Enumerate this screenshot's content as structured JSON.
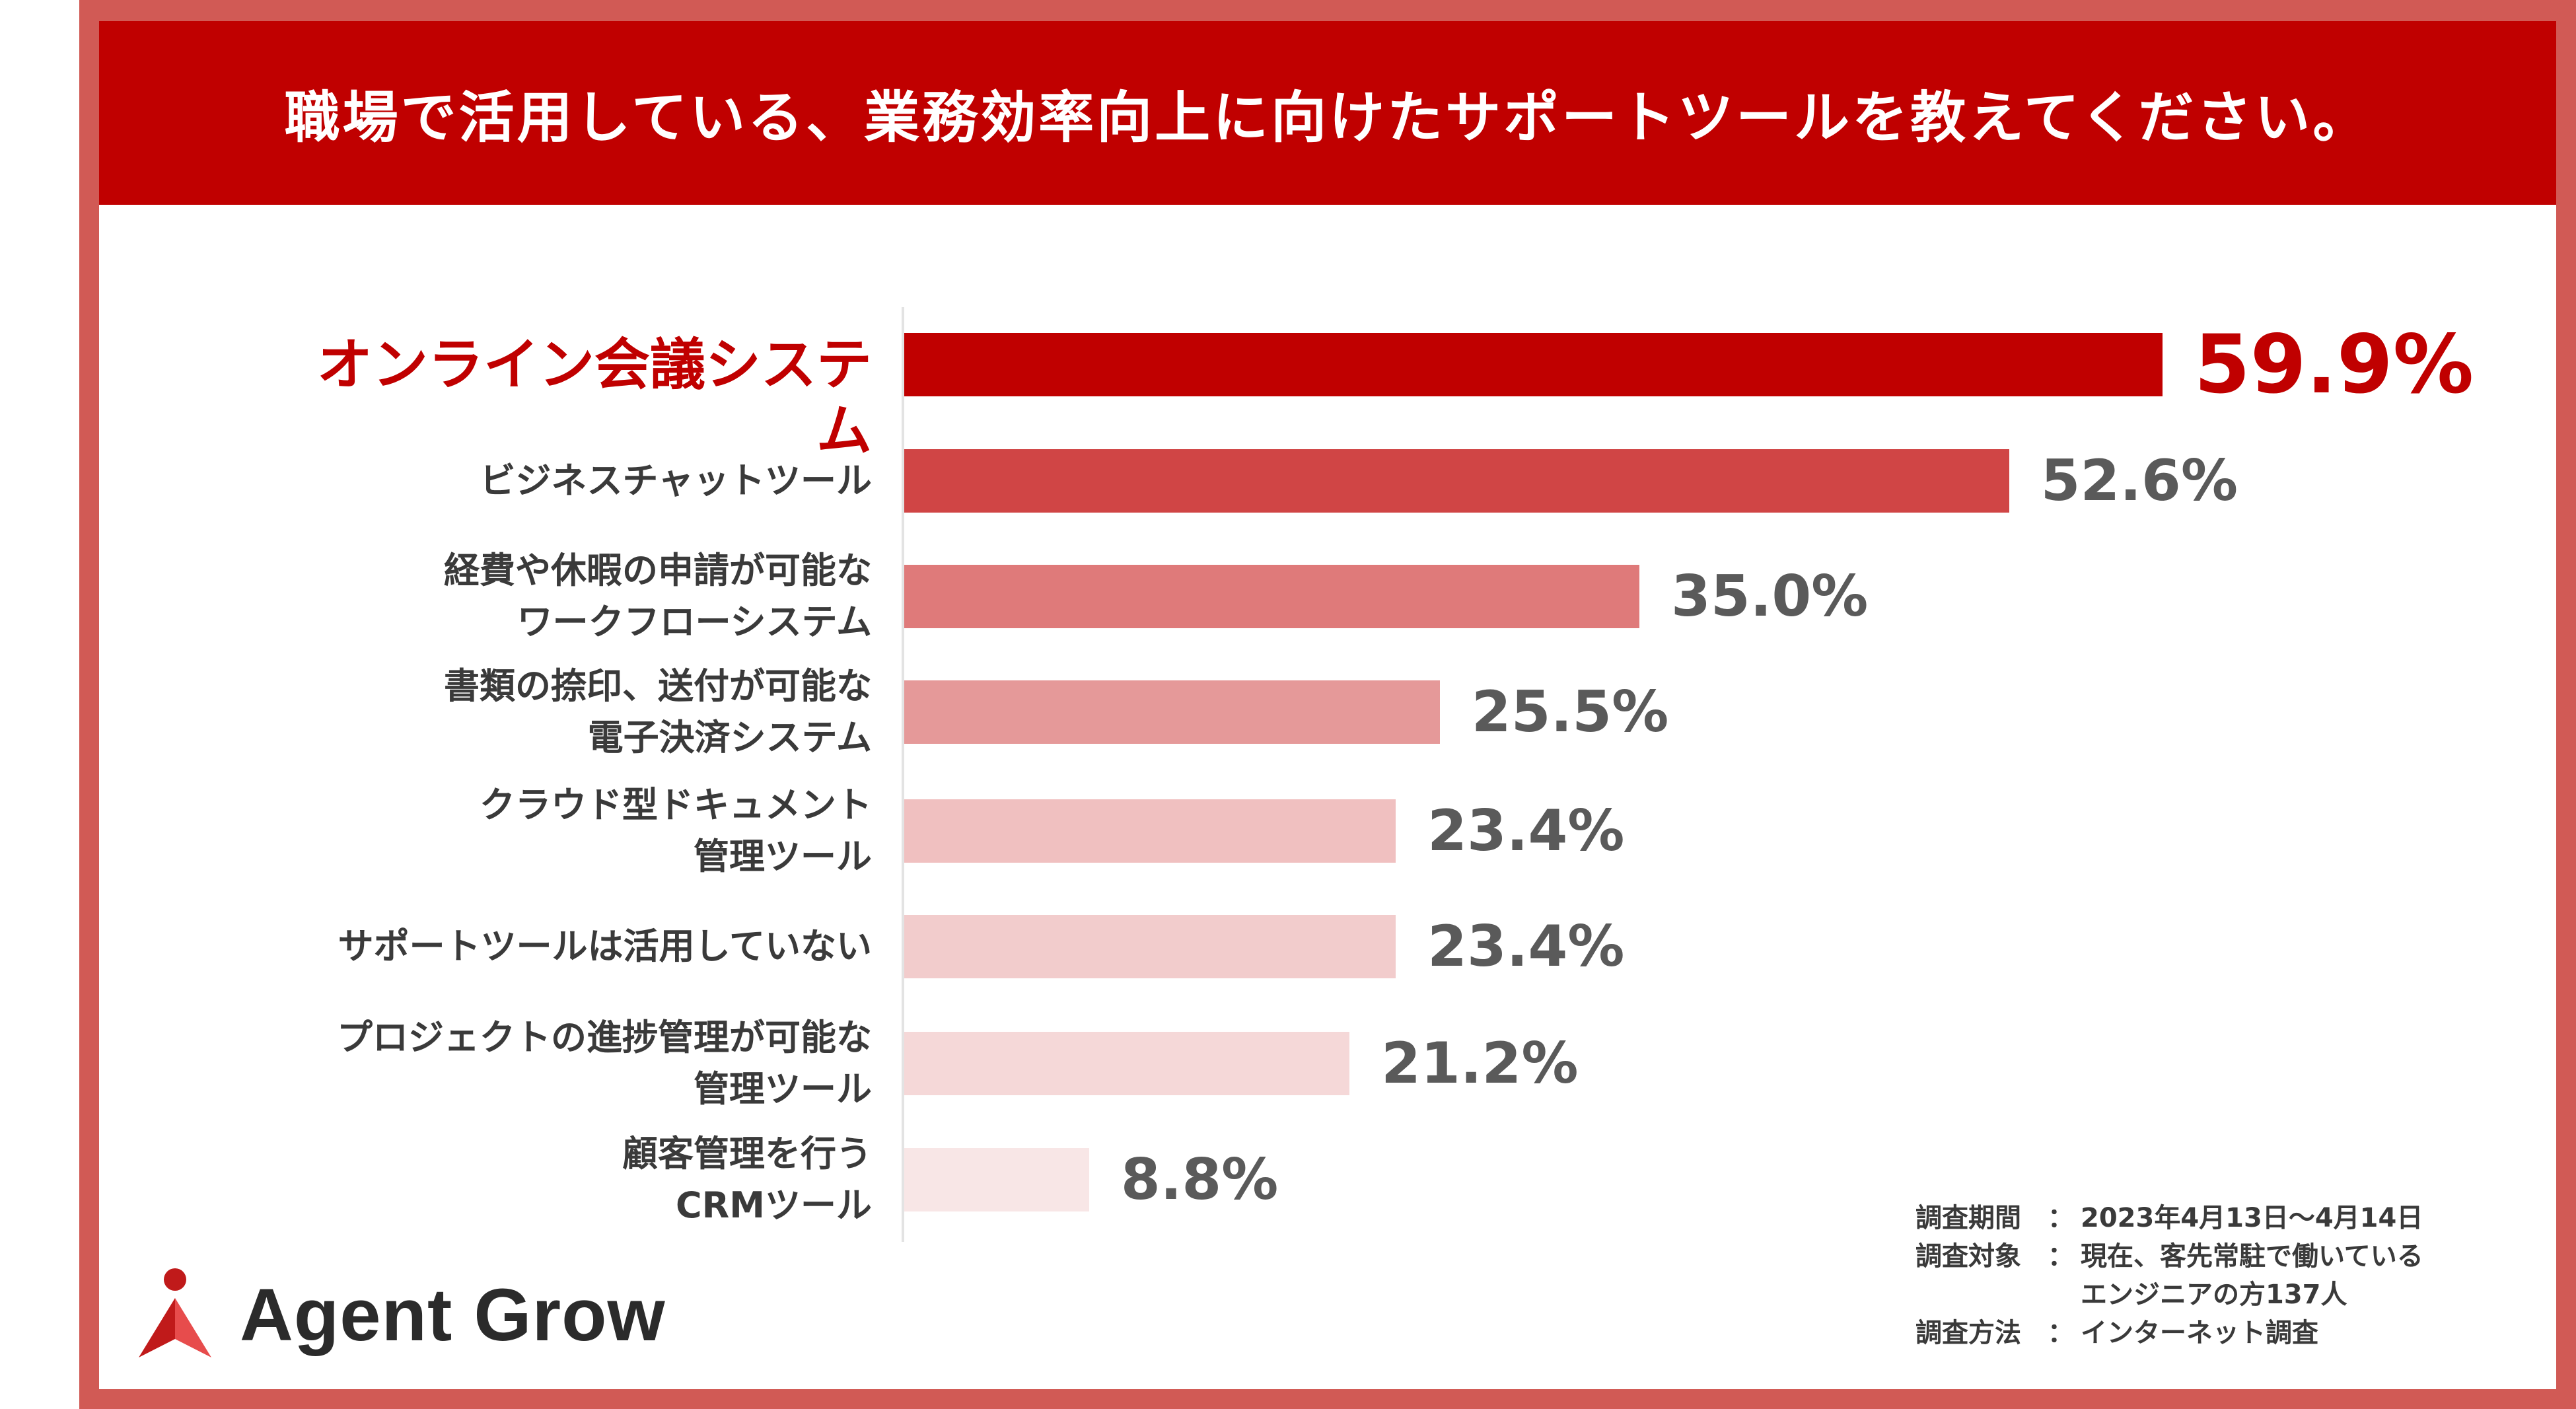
{
  "header": {
    "title": "職場で活用している、業務効率向上に向けたサポートツールを教えてください。"
  },
  "colors": {
    "frame": "#d15a55",
    "header_bg": "#c00000",
    "highlight_text": "#c00000",
    "bar_colors": [
      "#c00000",
      "#d04545",
      "#df7a7a",
      "#e59999",
      "#f0c0c0",
      "#f2cccc",
      "#f5d8d8",
      "#f8e6e6"
    ]
  },
  "chart_data": {
    "type": "bar",
    "orientation": "horizontal",
    "unit": "%",
    "categories": [
      "オンライン会議システム",
      "ビジネスチャットツール",
      "経費や休暇の申請が可能な\nワークフローシステム",
      "書類の捺印、送付が可能な\n電子決済システム",
      "クラウド型ドキュメント\n管理ツール",
      "サポートツールは活用していない",
      "プロジェクトの進捗管理が可能な\n管理ツール",
      "顧客管理を行う\nCRMツール"
    ],
    "values": [
      59.9,
      52.6,
      35.0,
      25.5,
      23.4,
      23.4,
      21.2,
      8.8
    ],
    "value_labels": [
      "59.9%",
      "52.6%",
      "35.0%",
      "25.5%",
      "23.4%",
      "23.4%",
      "21.2%",
      "8.8%"
    ],
    "highlight_index": 0,
    "xlim": [
      0,
      100
    ],
    "grid": false,
    "legend": "none"
  },
  "survey": [
    {
      "key": "調査期間",
      "sep": "：",
      "value": "2023年4月13日～4月14日"
    },
    {
      "key": "調査対象",
      "sep": "：",
      "value": "現在、客先常駐で働いている\nエンジニアの方137人"
    },
    {
      "key": "調査方法",
      "sep": "：",
      "value": "インターネット調査"
    }
  ],
  "logo": {
    "text": "Agent Grow",
    "icon": "agent-grow-logo-icon"
  }
}
